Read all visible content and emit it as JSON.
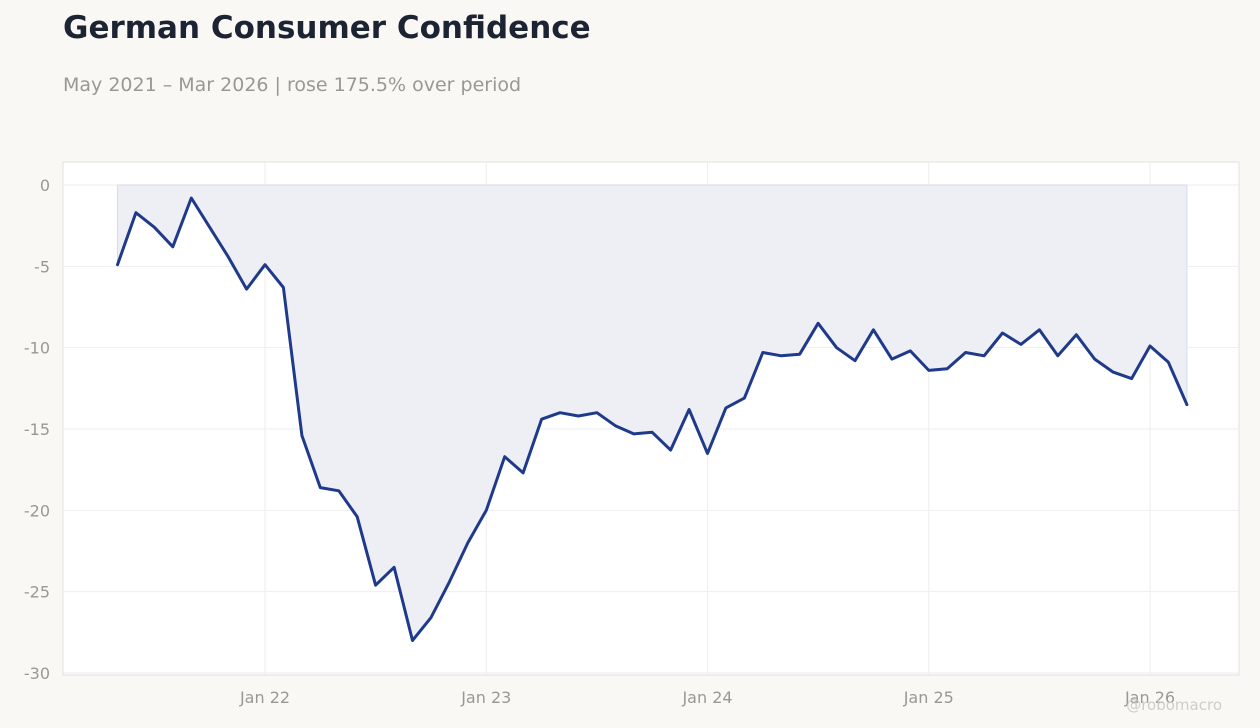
{
  "header": {
    "title": "German Consumer Confidence",
    "subtitle": "May 2021 – Mar 2026 | rose 175.5% over period"
  },
  "watermark": "@robomacro",
  "colors": {
    "line": "#1f3a8a",
    "fill": "#eeeff5",
    "plot_background": "#ffffff",
    "page_background": "#f9f8f5",
    "grid": "#eeeeee"
  },
  "chart_data": {
    "type": "area",
    "title": "German Consumer Confidence",
    "subtitle": "May 2021 – Mar 2026 | rose 175.5% over period",
    "xlabel": "",
    "ylabel": "",
    "ylim": [
      -30,
      0
    ],
    "yticks": [
      0,
      -5,
      -10,
      -15,
      -20,
      -25,
      -30
    ],
    "ytick_labels": [
      "0",
      "-5",
      "-10",
      "-15",
      "-20",
      "-25",
      "-30"
    ],
    "xlim": [
      "2021-03",
      "2026-06"
    ],
    "xticks": [
      "2022-01",
      "2023-01",
      "2024-01",
      "2025-01",
      "2026-01"
    ],
    "xtick_labels": [
      "Jan 22",
      "Jan 23",
      "Jan 24",
      "Jan 25",
      "Jan 26"
    ],
    "grid": true,
    "legend": "none",
    "fill_to": 0,
    "series": [
      {
        "x": [
          "2021-05",
          "2021-06",
          "2021-07",
          "2021-08",
          "2021-09",
          "2021-10",
          "2021-11",
          "2021-12",
          "2022-01",
          "2022-02",
          "2022-03",
          "2022-04",
          "2022-05",
          "2022-06",
          "2022-07",
          "2022-08",
          "2022-09",
          "2022-10",
          "2022-11",
          "2022-12",
          "2023-01",
          "2023-02",
          "2023-03",
          "2023-04",
          "2023-05",
          "2023-06",
          "2023-07",
          "2023-08",
          "2023-09",
          "2023-10",
          "2023-11",
          "2023-12",
          "2024-01",
          "2024-02",
          "2024-03",
          "2024-04",
          "2024-05",
          "2024-06",
          "2024-07",
          "2024-08",
          "2024-09",
          "2024-10",
          "2024-11",
          "2024-12",
          "2025-01",
          "2025-02",
          "2025-03",
          "2025-04",
          "2025-05",
          "2025-06",
          "2025-07",
          "2025-08",
          "2025-09",
          "2025-10",
          "2025-11",
          "2025-12",
          "2026-01",
          "2026-02",
          "2026-03"
        ],
        "values": [
          -4.9,
          -1.7,
          -2.6,
          -3.8,
          -0.8,
          -2.6,
          -4.4,
          -6.4,
          -4.9,
          -6.3,
          -15.4,
          -18.6,
          -18.8,
          -20.4,
          -24.6,
          -23.5,
          -28.0,
          -26.6,
          -24.4,
          -22.0,
          -20.0,
          -16.7,
          -17.7,
          -14.4,
          -14.0,
          -14.2,
          -14.0,
          -14.8,
          -15.3,
          -15.2,
          -16.3,
          -13.8,
          -16.5,
          -13.7,
          -13.1,
          -10.3,
          -10.5,
          -10.4,
          -8.5,
          -10.0,
          -10.8,
          -8.9,
          -10.7,
          -10.2,
          -11.4,
          -11.3,
          -10.3,
          -10.5,
          -9.1,
          -9.8,
          -8.9,
          -10.5,
          -9.2,
          -10.7,
          -11.5,
          -11.9,
          -9.9,
          -10.9,
          -13.5
        ]
      }
    ]
  }
}
